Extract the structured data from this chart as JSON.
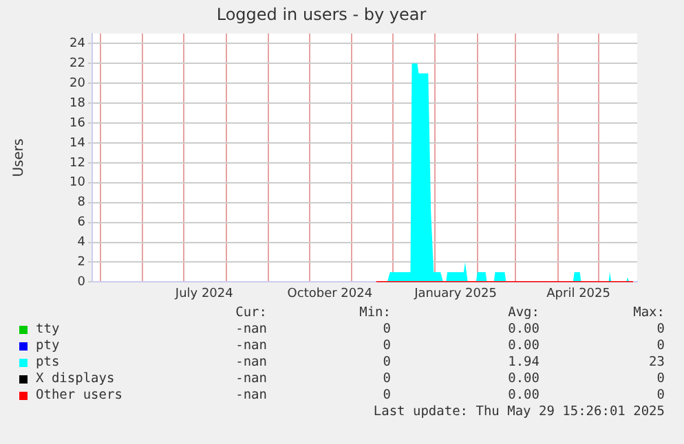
{
  "chart_data": {
    "type": "area",
    "title": "Logged in users - by year",
    "ylabel": "Users",
    "xlim": [
      "2024-04-25",
      "2025-05-29"
    ],
    "xticks": [
      {
        "value": "2024-05-01",
        "label": null
      },
      {
        "value": "2024-06-01",
        "label": null
      },
      {
        "value": "2024-07-01",
        "label": null
      },
      {
        "value": "2024-07-16",
        "label": "July 2024"
      },
      {
        "value": "2024-08-01",
        "label": null
      },
      {
        "value": "2024-09-01",
        "label": null
      },
      {
        "value": "2024-10-01",
        "label": null
      },
      {
        "value": "2024-10-16",
        "label": "October 2024"
      },
      {
        "value": "2024-11-01",
        "label": null
      },
      {
        "value": "2024-12-01",
        "label": null
      },
      {
        "value": "2025-01-01",
        "label": null
      },
      {
        "value": "2025-01-16",
        "label": "January 2025"
      },
      {
        "value": "2025-02-01",
        "label": null
      },
      {
        "value": "2025-03-01",
        "label": null
      },
      {
        "value": "2025-04-01",
        "label": null
      },
      {
        "value": "2025-04-16",
        "label": "April 2025"
      },
      {
        "value": "2025-05-01",
        "label": null
      }
    ],
    "ylim": [
      0,
      25
    ],
    "yticks": [
      0,
      2,
      4,
      6,
      8,
      10,
      12,
      14,
      16,
      18,
      20,
      22,
      24
    ],
    "grid": true,
    "legend": "bottom",
    "series": [
      {
        "name": "tty",
        "type": "line",
        "color": "#00cc00"
      },
      {
        "name": "pty",
        "type": "line",
        "color": "#0000ff"
      },
      {
        "name": "pts",
        "color": "#00ffff",
        "x": [
          "2024-11-17",
          "2024-11-27",
          "2024-11-29",
          "2024-12-14",
          "2024-12-15",
          "2024-12-19",
          "2024-12-20",
          "2024-12-27",
          "2024-12-29",
          "2024-12-31",
          "2025-01-05",
          "2025-01-07",
          "2025-01-09",
          "2025-01-10",
          "2025-01-22",
          "2025-01-23",
          "2025-01-24",
          "2025-01-25",
          "2025-01-31",
          "2025-02-01",
          "2025-02-07",
          "2025-02-08",
          "2025-02-13",
          "2025-02-14",
          "2025-02-21",
          "2025-02-22",
          "2025-04-12",
          "2025-04-13",
          "2025-04-17",
          "2025-04-18",
          "2025-05-08",
          "2025-05-09",
          "2025-05-10",
          "2025-05-21",
          "2025-05-22",
          "2025-05-23",
          "2025-05-29"
        ],
        "values": [
          0,
          0,
          1,
          1,
          22,
          22,
          21,
          21,
          7,
          1,
          1,
          0,
          0,
          1,
          1,
          2,
          1,
          0,
          0,
          1,
          1,
          0,
          0,
          1,
          1,
          0,
          0,
          1,
          1,
          0,
          0,
          1,
          0,
          0,
          0.5,
          0,
          0
        ]
      },
      {
        "name": "X displays",
        "type": "line",
        "color": "#000000"
      },
      {
        "name": "Other users",
        "type": "line",
        "color": "#ff0000",
        "x": [
          "2024-11-19",
          "2025-05-26"
        ],
        "values": [
          0,
          0
        ]
      }
    ],
    "annotations": [
      "Cur:",
      "Min:",
      "Avg:",
      "Max:",
      "-nan",
      "0",
      "0.00",
      "0",
      "-nan",
      "0",
      "0.00",
      "0",
      "-nan",
      "0",
      "1.94",
      "23",
      "-nan",
      "0",
      "0.00",
      "0",
      "-nan",
      "0",
      "0.00",
      "0",
      "Last update: Thu May 29 15:26:01 2025"
    ]
  }
}
